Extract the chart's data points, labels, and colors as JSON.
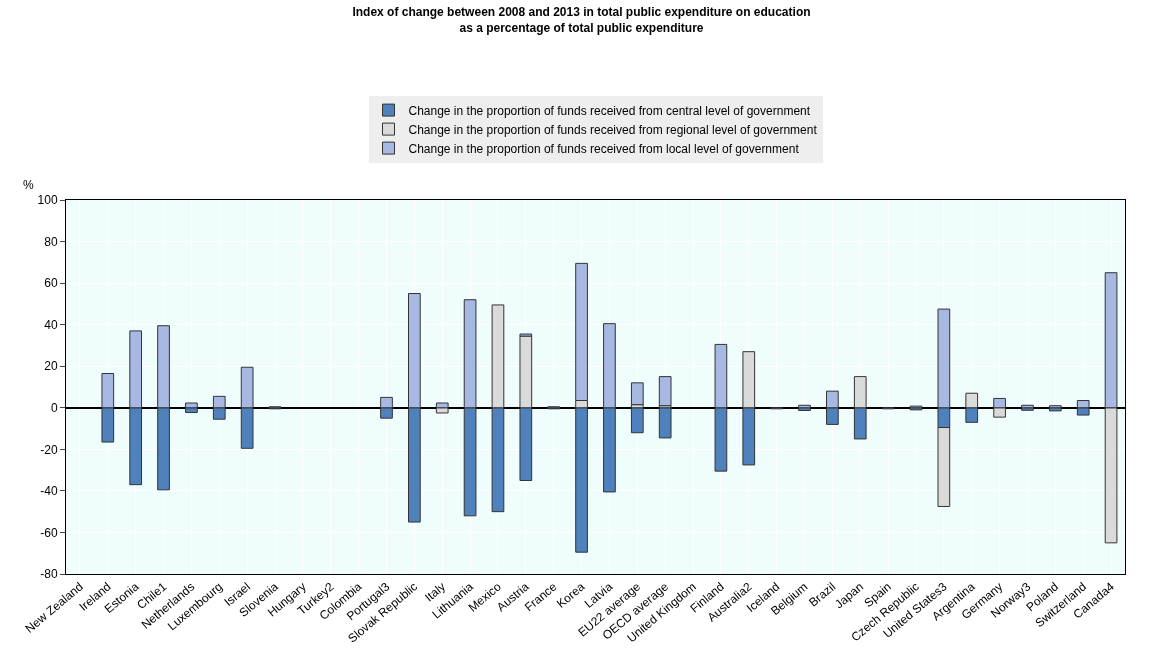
{
  "chart_data": {
    "type": "bar",
    "stacked": true,
    "title": "Index of change between 2008 and 2013 in total public expenditure on education\nas a percentage of total public expenditure",
    "ylabel": "%",
    "categories": [
      "New Zealand",
      "Ireland",
      "Estonia",
      "Chile1",
      "Netherlands",
      "Luxembourg",
      "Israel",
      "Slovenia",
      "Hungary",
      "Turkey2",
      "Colombia",
      "Portugal3",
      "Slovak Republic",
      "Italy",
      "Lithuania",
      "Mexico",
      "Austria",
      "France",
      "Korea",
      "Latvia",
      "EU22 average",
      "OECD average",
      "United Kingdom",
      "Finland",
      "Australia2",
      "Iceland",
      "Belgium",
      "Brazil",
      "Japan",
      "Spain",
      "Czech Republic",
      "United States3",
      "Argentina",
      "Germany",
      "Norway3",
      "Poland",
      "Switzerland",
      "Canada4"
    ],
    "series": [
      {
        "name": "Change in the proportion of funds received from central level of government",
        "color": "#4f81bd",
        "values": [
          null,
          -16.5,
          -37,
          -39.5,
          -2.3,
          -5.5,
          -19.5,
          -0.5,
          null,
          null,
          null,
          -5,
          -55,
          null,
          -52,
          -50,
          -35,
          -0.5,
          -69.5,
          -40.5,
          -12,
          -14.5,
          null,
          -30.5,
          -27.5,
          -0.5,
          -1.3,
          -8,
          -15,
          -0.5,
          -1,
          -9.5,
          -7,
          null,
          -1.2,
          -1.5,
          -3.5,
          null
        ]
      },
      {
        "name": "Change in the proportion of funds received from regional level of government",
        "color": "#dadada",
        "values": [
          null,
          null,
          null,
          null,
          null,
          null,
          null,
          null,
          null,
          null,
          null,
          null,
          null,
          -2.5,
          null,
          49.5,
          34.5,
          null,
          3.5,
          null,
          1.5,
          1,
          null,
          null,
          27,
          null,
          null,
          null,
          15,
          null,
          null,
          -38,
          7,
          -4.5,
          null,
          null,
          null,
          -65
        ]
      },
      {
        "name": "Change in the proportion of funds received from local level of government",
        "color": "#a7b8e3",
        "values": [
          null,
          16.5,
          37,
          39.5,
          2.3,
          5.5,
          19.5,
          0.5,
          null,
          null,
          null,
          5,
          55,
          2.3,
          52,
          null,
          1,
          0.5,
          66,
          40.5,
          10.5,
          14,
          null,
          30.5,
          null,
          null,
          1.2,
          8,
          null,
          null,
          0.8,
          47.5,
          null,
          4.5,
          1.2,
          1,
          3.5,
          65
        ]
      }
    ],
    "ylim": [
      -80,
      100
    ],
    "yticks": [
      -80,
      -60,
      -40,
      -20,
      0,
      20,
      40,
      60,
      80,
      100
    ],
    "grid": true,
    "legend": "top"
  }
}
